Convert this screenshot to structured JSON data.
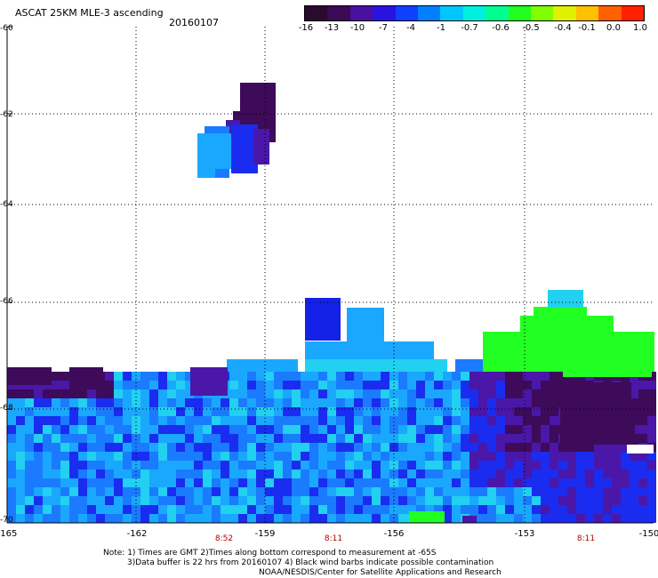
{
  "header": {
    "title": "ASCAT 25KM MLE-3 ascending",
    "date": "20160107"
  },
  "colorbar": {
    "ticks": [
      "-16",
      "-13",
      "-10",
      "-7",
      "-4",
      "-1",
      "-0.7",
      "-0.6",
      "-0.5",
      "-0.4",
      "-0.1",
      "0.0",
      "1.0"
    ],
    "colors": [
      "#2a0a2e",
      "#3a0a55",
      "#4a10a0",
      "#2a12e0",
      "#1040ff",
      "#0080ff",
      "#00c8ff",
      "#00f0e0",
      "#00ff90",
      "#20ff20",
      "#80ff00",
      "#e0f000",
      "#ffc000",
      "#ff6000",
      "#ff2000"
    ]
  },
  "map": {
    "lat_labels": [
      "-60",
      "-62",
      "-64",
      "-66",
      "-68",
      "-70"
    ],
    "lon_labels": [
      "-165",
      "-162",
      "-159",
      "-156",
      "-153",
      "-150"
    ],
    "pass_times": [
      "8:52",
      "8:11",
      "8:11"
    ],
    "colors": {
      "dark_purple": "#3d0b5a",
      "purple": "#4a17a8",
      "blue": "#1a2cf0",
      "mid_blue": "#1a7bff",
      "light_blue": "#1aa8ff",
      "cyan": "#22d0f0",
      "green": "#22ff22"
    }
  },
  "footer": {
    "line1": "Note: 1) Times are GMT 2)Times along bottom correspond to measurement at -65S",
    "line2": "3)Data buffer is 22 hrs from 20160107 4) Black wind barbs indicate possible contamination",
    "line3": "NOAA/NESDIS/Center for Satellite Applications and Research"
  }
}
